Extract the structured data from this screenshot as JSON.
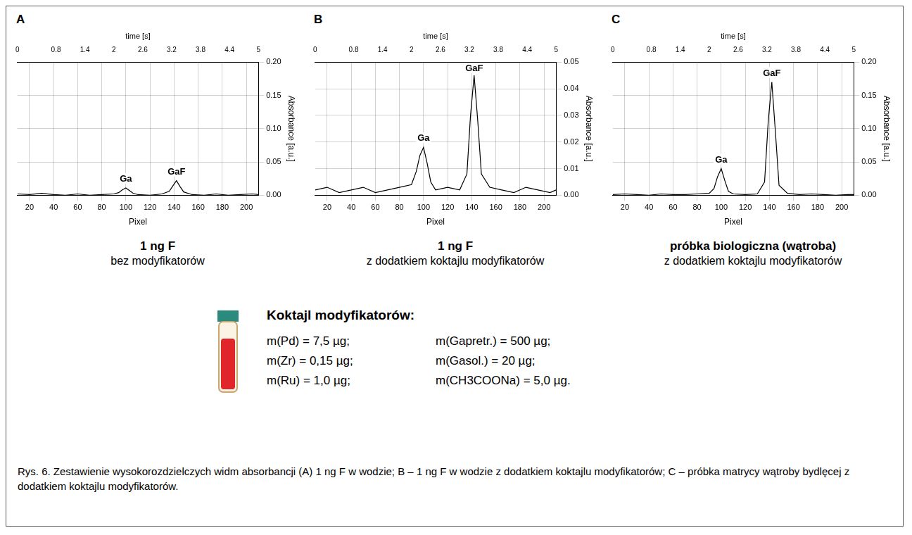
{
  "chart_data": [
    {
      "type": "line",
      "panel": "A",
      "x_label": "Pixel",
      "y_label": "Absorbance [a.u.]",
      "x2_label": "time [s]",
      "x": [
        10,
        20,
        30,
        40,
        50,
        60,
        70,
        80,
        90,
        94,
        97,
        100,
        103,
        106,
        110,
        120,
        130,
        136,
        139,
        142,
        145,
        148,
        155,
        165,
        175,
        185,
        195,
        205,
        210
      ],
      "values": [
        0.002,
        0.001,
        0.003,
        0.001,
        0.0,
        0.002,
        0.0,
        0.001,
        0.002,
        0.004,
        0.008,
        0.011,
        0.007,
        0.003,
        0.001,
        0.0,
        0.002,
        0.006,
        0.014,
        0.022,
        0.013,
        0.005,
        0.001,
        0.0,
        0.002,
        0.0,
        0.001,
        0.002,
        0.001
      ],
      "color": "#000000",
      "xlim": [
        10,
        210
      ],
      "xticks": [
        20,
        40,
        60,
        80,
        100,
        120,
        140,
        160,
        180,
        200
      ],
      "ylim": [
        0,
        0.2
      ],
      "yticks": [
        {
          "value": 0,
          "label": "0.00"
        },
        {
          "value": 0.05,
          "label": "0.05"
        },
        {
          "value": 0.1,
          "label": "0.10"
        },
        {
          "value": 0.15,
          "label": "0.15"
        },
        {
          "value": 0.2,
          "label": "0.20"
        }
      ],
      "x2lim": [
        0,
        5
      ],
      "x2ticks": [
        0,
        0.8,
        1.4,
        2,
        2.6,
        3.2,
        3.8,
        4.4,
        5
      ],
      "annotations": [
        {
          "text": "Ga",
          "x": 100
        },
        {
          "text": "GaF",
          "x": 142
        }
      ],
      "grid": true
    },
    {
      "type": "line",
      "panel": "B",
      "x_label": "Pixel",
      "y_label": "Absorbance [a.u.]",
      "x2_label": "time [s]",
      "x": [
        10,
        20,
        30,
        40,
        50,
        60,
        70,
        80,
        90,
        94,
        97,
        100,
        103,
        106,
        110,
        120,
        130,
        136,
        139,
        142,
        145,
        148,
        155,
        165,
        175,
        185,
        195,
        205,
        210
      ],
      "values": [
        0.002,
        0.003,
        0.001,
        0.002,
        0.003,
        0.001,
        0.002,
        0.003,
        0.004,
        0.009,
        0.015,
        0.018,
        0.012,
        0.005,
        0.002,
        0.003,
        0.002,
        0.008,
        0.03,
        0.045,
        0.028,
        0.008,
        0.003,
        0.002,
        0.001,
        0.003,
        0.002,
        0.001,
        0.002
      ],
      "color": "#000000",
      "xlim": [
        10,
        210
      ],
      "xticks": [
        20,
        40,
        60,
        80,
        100,
        120,
        140,
        160,
        180,
        200
      ],
      "ylim": [
        0,
        0.05
      ],
      "yticks": [
        {
          "value": 0,
          "label": "0.00"
        },
        {
          "value": 0.01,
          "label": "0.01"
        },
        {
          "value": 0.02,
          "label": "0.02"
        },
        {
          "value": 0.03,
          "label": "0.03"
        },
        {
          "value": 0.04,
          "label": "0.04"
        },
        {
          "value": 0.05,
          "label": "0.05"
        }
      ],
      "x2lim": [
        0,
        5
      ],
      "x2ticks": [
        0,
        0.8,
        1.4,
        2,
        2.6,
        3.2,
        3.8,
        4.4,
        5
      ],
      "annotations": [
        {
          "text": "Ga",
          "x": 100
        },
        {
          "text": "GaF",
          "x": 142
        }
      ],
      "grid": true
    },
    {
      "type": "line",
      "panel": "C",
      "x_label": "Pixel",
      "y_label": "Absorbance [a.u.]",
      "x2_label": "time [s]",
      "x": [
        10,
        20,
        30,
        40,
        50,
        60,
        70,
        80,
        90,
        94,
        97,
        100,
        103,
        106,
        110,
        120,
        130,
        136,
        139,
        142,
        145,
        148,
        155,
        165,
        175,
        185,
        195,
        205,
        210
      ],
      "values": [
        0.001,
        0.002,
        0.001,
        0.0,
        0.002,
        0.001,
        0.001,
        0.002,
        0.003,
        0.01,
        0.028,
        0.04,
        0.022,
        0.006,
        0.002,
        0.001,
        0.002,
        0.02,
        0.11,
        0.17,
        0.095,
        0.015,
        0.003,
        0.001,
        0.002,
        0.001,
        0.0,
        0.001,
        0.001
      ],
      "color": "#000000",
      "xlim": [
        10,
        210
      ],
      "xticks": [
        20,
        40,
        60,
        80,
        100,
        120,
        140,
        160,
        180,
        200
      ],
      "ylim": [
        0,
        0.2
      ],
      "yticks": [
        {
          "value": 0,
          "label": "0.00"
        },
        {
          "value": 0.05,
          "label": "0.05"
        },
        {
          "value": 0.1,
          "label": "0.10"
        },
        {
          "value": 0.15,
          "label": "0.15"
        },
        {
          "value": 0.2,
          "label": "0.20"
        }
      ],
      "x2lim": [
        0,
        5
      ],
      "x2ticks": [
        0,
        0.8,
        1.4,
        2,
        2.6,
        3.2,
        3.8,
        4.4,
        5
      ],
      "annotations": [
        {
          "text": "Ga",
          "x": 100
        },
        {
          "text": "GaF",
          "x": 142
        }
      ],
      "grid": true
    }
  ],
  "panel_captions": [
    {
      "bold": "1 ng F",
      "text": "bez modyfikatorów"
    },
    {
      "bold": "1 ng F",
      "text": "z dodatkiem koktajlu modyfikatorów"
    },
    {
      "bold": "próbka biologiczna (wątroba)",
      "text": "z dodatkiem koktajlu modyfikatorów"
    }
  ],
  "modifier_cocktail": {
    "title": "Koktajl modyfikatorów:",
    "items": [
      "m(Pd) = 7,5 µg;",
      "m(Gapretr.) = 500 µg;",
      "m(Zr) = 0,15 µg;",
      "m(Gasol.) = 20 µg;",
      "m(Ru) = 1,0 µg;",
      "m(CH3COONa) = 5,0 µg."
    ]
  },
  "figure_caption": "Rys. 6. Zestawienie wysokorozdzielczych widm absorbancji (A) 1 ng F w wodzie; B – 1 ng F w wodzie z dodatkiem koktajlu modyfikatorów; C – próbka matrycy wątroby bydlęcej z dodatkiem koktajlu modyfikatorów."
}
